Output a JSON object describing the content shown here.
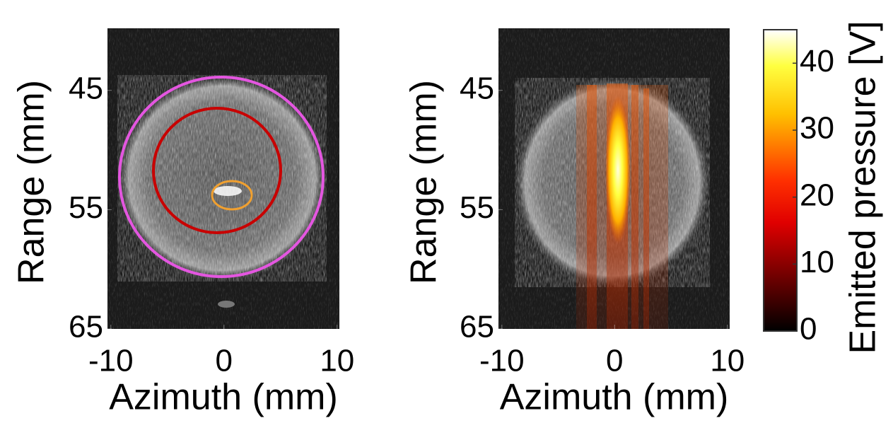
{
  "chart_data": [
    {
      "type": "image",
      "xlabel": "Azimuth (mm)",
      "ylabel": "Range (mm)",
      "xlim": [
        -10.3,
        10.2
      ],
      "xticks": [
        -10,
        0,
        10
      ],
      "ylim": [
        39.8,
        65
      ],
      "yticks": [
        45,
        55,
        65
      ],
      "y_reversed": true
    },
    {
      "type": "image",
      "xlabel": "Azimuth (mm)",
      "ylabel": "Range (mm)",
      "xlim": [
        -10.3,
        10.2
      ],
      "xticks": [
        -10,
        0,
        10
      ],
      "ylim": [
        39.8,
        65
      ],
      "yticks": [
        45,
        55,
        65
      ],
      "y_reversed": true
    },
    {
      "type": "colorbar",
      "label": "Emitted pressure [V]",
      "clim": [
        0,
        45
      ],
      "ticks": [
        0,
        10,
        20,
        30,
        40
      ]
    }
  ]
}
